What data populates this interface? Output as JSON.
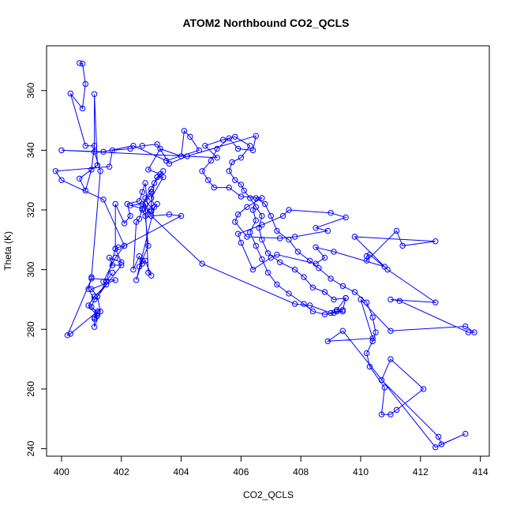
{
  "chart_data": {
    "type": "line",
    "title": "ATOM2 Northbound CO2_QCLS",
    "xlabel": "CO2_QCLS",
    "ylabel": "Theta (K)",
    "xlim": [
      399.5,
      414.3
    ],
    "ylim": [
      237.5,
      375
    ],
    "xticks": [
      400,
      402,
      404,
      406,
      408,
      410,
      412,
      414
    ],
    "yticks": [
      240,
      260,
      280,
      300,
      320,
      340,
      360
    ],
    "series": [
      {
        "color": "#0000ff",
        "marker": "open-circle",
        "points": [
          [
            400.6,
            369.2
          ],
          [
            400.7,
            369.0
          ],
          [
            400.8,
            362.2
          ],
          [
            400.7,
            354.0
          ],
          [
            400.3,
            359.0
          ],
          [
            400.8,
            341.5
          ],
          [
            401.1,
            341.5
          ],
          [
            401.0,
            333.5
          ],
          [
            400.8,
            326.5
          ],
          [
            400.6,
            330.5
          ],
          [
            401.2,
            335.0
          ],
          [
            401.1,
            358.8
          ],
          [
            401.1,
            339.5
          ],
          [
            401.3,
            333.0
          ],
          [
            401.0,
            297.5
          ],
          [
            400.9,
            293.5
          ],
          [
            401.1,
            290.0
          ],
          [
            401.0,
            287.5
          ],
          [
            401.2,
            285.5
          ],
          [
            401.1,
            283.5
          ],
          [
            401.1,
            280.8
          ],
          [
            401.3,
            286.0
          ],
          [
            401.2,
            291.0
          ],
          [
            401.5,
            296.0
          ],
          [
            401.7,
            299.0
          ],
          [
            401.5,
            296.0
          ],
          [
            401.8,
            307.0
          ],
          [
            401.8,
            322.0
          ],
          [
            402.1,
            315.5
          ],
          [
            402.3,
            318.0
          ],
          [
            402.2,
            322.0
          ],
          [
            402.6,
            323.0
          ],
          [
            402.7,
            326.0
          ],
          [
            402.8,
            329.0
          ],
          [
            402.9,
            318.5
          ],
          [
            402.8,
            322.0
          ],
          [
            402.9,
            299.0
          ],
          [
            403.0,
            298.0
          ],
          [
            402.8,
            303.0
          ],
          [
            402.7,
            302.0
          ],
          [
            402.6,
            301.0
          ],
          [
            402.9,
            308.0
          ],
          [
            402.8,
            318.0
          ],
          [
            402.7,
            320.0
          ],
          [
            402.8,
            324.0
          ],
          [
            403.0,
            327.0
          ],
          [
            403.2,
            331.0
          ],
          [
            403.4,
            333.0
          ],
          [
            403.1,
            329.0
          ],
          [
            403.0,
            322.0
          ],
          [
            403.0,
            320.0
          ],
          [
            403.0,
            319.5
          ],
          [
            403.2,
            322.0
          ],
          [
            403.1,
            321.0
          ],
          [
            402.5,
            296.5
          ],
          [
            402.7,
            303.0
          ],
          [
            402.6,
            304.5
          ],
          [
            402.4,
            300.0
          ],
          [
            402.5,
            316.0
          ],
          [
            402.6,
            317.0
          ],
          [
            402.7,
            320.5
          ],
          [
            402.3,
            321.5
          ],
          [
            402.7,
            322.0
          ],
          [
            403.0,
            326.0
          ],
          [
            403.0,
            324.0
          ],
          [
            403.4,
            331.0
          ],
          [
            403.2,
            331.0
          ],
          [
            403.3,
            332.0
          ],
          [
            402.9,
            333.5
          ],
          [
            403.3,
            340.5
          ],
          [
            404.0,
            338.0
          ],
          [
            404.1,
            346.5
          ],
          [
            404.3,
            344.5
          ],
          [
            404.6,
            340.0
          ],
          [
            403.5,
            336.5
          ],
          [
            402.4,
            341.5
          ],
          [
            401.4,
            339.5
          ],
          [
            400.0,
            340.0
          ],
          [
            405.2,
            337.5
          ],
          [
            404.8,
            341.5
          ],
          [
            405.4,
            343.5
          ],
          [
            405.8,
            344.5
          ],
          [
            406.3,
            341.5
          ],
          [
            406.0,
            337.5
          ],
          [
            405.7,
            336.0
          ],
          [
            405.6,
            333.0
          ],
          [
            405.8,
            330.0
          ],
          [
            406.0,
            328.5
          ],
          [
            406.1,
            326.5
          ],
          [
            406.3,
            324.0
          ],
          [
            406.5,
            321.0
          ],
          [
            406.7,
            318.0
          ],
          [
            406.6,
            314.0
          ],
          [
            406.7,
            310.0
          ],
          [
            406.9,
            305.5
          ],
          [
            407.3,
            302.5
          ],
          [
            407.8,
            300.0
          ],
          [
            408.1,
            297.5
          ],
          [
            408.4,
            294.0
          ],
          [
            408.8,
            292.5
          ],
          [
            409.1,
            290.0
          ],
          [
            409.5,
            290.5
          ],
          [
            409.2,
            286.5
          ],
          [
            409.4,
            286.0
          ],
          [
            409.1,
            285.5
          ],
          [
            408.8,
            285.0
          ],
          [
            408.4,
            286.0
          ],
          [
            408.1,
            288.5
          ],
          [
            407.6,
            292.0
          ],
          [
            407.2,
            295.0
          ],
          [
            406.9,
            299.0
          ],
          [
            406.7,
            303.5
          ],
          [
            406.5,
            308.0
          ],
          [
            406.3,
            312.5
          ],
          [
            406.5,
            316.5
          ],
          [
            406.4,
            320.0
          ],
          [
            406.5,
            324.0
          ],
          [
            406.8,
            322.0
          ],
          [
            407.0,
            318.0
          ],
          [
            407.2,
            313.0
          ],
          [
            407.6,
            310.0
          ],
          [
            407.9,
            306.0
          ],
          [
            408.3,
            303.0
          ],
          [
            408.6,
            300.5
          ],
          [
            409.0,
            297.0
          ],
          [
            409.4,
            294.5
          ],
          [
            409.8,
            292.5
          ],
          [
            410.2,
            289.0
          ],
          [
            410.4,
            284.0
          ],
          [
            410.5,
            279.0
          ],
          [
            410.4,
            276.0
          ],
          [
            410.2,
            272.0
          ],
          [
            410.3,
            267.5
          ],
          [
            410.8,
            260.5
          ],
          [
            410.7,
            251.5
          ],
          [
            411.0,
            251.5
          ],
          [
            411.2,
            253.0
          ],
          [
            412.1,
            260.0
          ],
          [
            411.0,
            270.0
          ],
          [
            410.7,
            263.0
          ],
          [
            412.6,
            244.0
          ],
          [
            412.7,
            241.5
          ],
          [
            413.5,
            245.0
          ],
          [
            412.5,
            240.5
          ],
          [
            409.4,
            279.5
          ],
          [
            408.9,
            276.0
          ],
          [
            410.4,
            277.0
          ],
          [
            410.0,
            290.0
          ],
          [
            411.0,
            279.5
          ],
          [
            413.5,
            281.0
          ],
          [
            413.8,
            279.0
          ],
          [
            413.6,
            279.0
          ],
          [
            411.3,
            289.5
          ],
          [
            411.0,
            290.0
          ],
          [
            412.5,
            289.0
          ],
          [
            410.9,
            300.0
          ],
          [
            410.3,
            305.0
          ],
          [
            410.2,
            304.5
          ],
          [
            410.2,
            303.0
          ],
          [
            411.2,
            313.0
          ],
          [
            411.4,
            308.0
          ],
          [
            412.5,
            309.5
          ],
          [
            409.8,
            311.0
          ],
          [
            410.8,
            301.0
          ],
          [
            409.1,
            306.0
          ],
          [
            408.5,
            307.5
          ],
          [
            408.8,
            304.0
          ],
          [
            408.5,
            302.0
          ],
          [
            407.2,
            305.0
          ],
          [
            407.0,
            304.0
          ],
          [
            406.4,
            300.0
          ],
          [
            406.0,
            309.0
          ],
          [
            405.9,
            312.0
          ],
          [
            406.7,
            315.0
          ],
          [
            407.4,
            318.0
          ],
          [
            407.6,
            320.0
          ],
          [
            409.0,
            319.0
          ],
          [
            409.5,
            317.5
          ],
          [
            408.5,
            314.0
          ],
          [
            408.9,
            313.0
          ],
          [
            407.8,
            311.0
          ],
          [
            407.3,
            310.5
          ],
          [
            406.2,
            311.0
          ],
          [
            405.8,
            316.0
          ],
          [
            405.9,
            318.5
          ],
          [
            406.2,
            321.0
          ],
          [
            406.7,
            324.0
          ],
          [
            406.0,
            324.5
          ],
          [
            405.6,
            327.5
          ],
          [
            405.1,
            327.5
          ],
          [
            404.9,
            330.0
          ],
          [
            404.7,
            333.0
          ],
          [
            405.0,
            336.5
          ],
          [
            405.2,
            340.5
          ],
          [
            405.6,
            344.0
          ],
          [
            405.9,
            340.5
          ],
          [
            406.4,
            340.0
          ],
          [
            406.5,
            344.8
          ],
          [
            404.2,
            338.0
          ],
          [
            403.6,
            335.5
          ],
          [
            403.2,
            342.0
          ],
          [
            402.7,
            341.5
          ],
          [
            402.3,
            340.5
          ],
          [
            401.7,
            340.0
          ],
          [
            401.6,
            334.5
          ],
          [
            399.8,
            333.0
          ],
          [
            400.0,
            330.0
          ],
          [
            401.4,
            323.5
          ],
          [
            402.1,
            308.0
          ],
          [
            401.8,
            304.0
          ],
          [
            401.4,
            296.0
          ],
          [
            401.5,
            295.0
          ],
          [
            401.1,
            291.0
          ],
          [
            400.9,
            288.0
          ],
          [
            401.2,
            284.5
          ],
          [
            401.1,
            284.0
          ],
          [
            401.2,
            286.0
          ],
          [
            400.3,
            278.5
          ],
          [
            400.2,
            278.0
          ],
          [
            401.0,
            297.0
          ],
          [
            401.8,
            296.5
          ],
          [
            401.0,
            293.5
          ],
          [
            401.2,
            291.0
          ],
          [
            402.0,
            301.5
          ],
          [
            401.7,
            301.5
          ],
          [
            401.6,
            304.0
          ],
          [
            402.0,
            302.5
          ],
          [
            401.8,
            307.0
          ],
          [
            401.9,
            307.5
          ],
          [
            402.1,
            308.0
          ],
          [
            404.0,
            318.0
          ],
          [
            403.6,
            318.5
          ],
          [
            403.0,
            318.0
          ],
          [
            404.7,
            302.0
          ],
          [
            407.8,
            288.5
          ],
          [
            408.3,
            288.0
          ],
          [
            409.0,
            285.5
          ],
          [
            409.2,
            286.0
          ],
          [
            409.4,
            286.5
          ],
          [
            409.5,
            290.5
          ]
        ]
      }
    ]
  }
}
